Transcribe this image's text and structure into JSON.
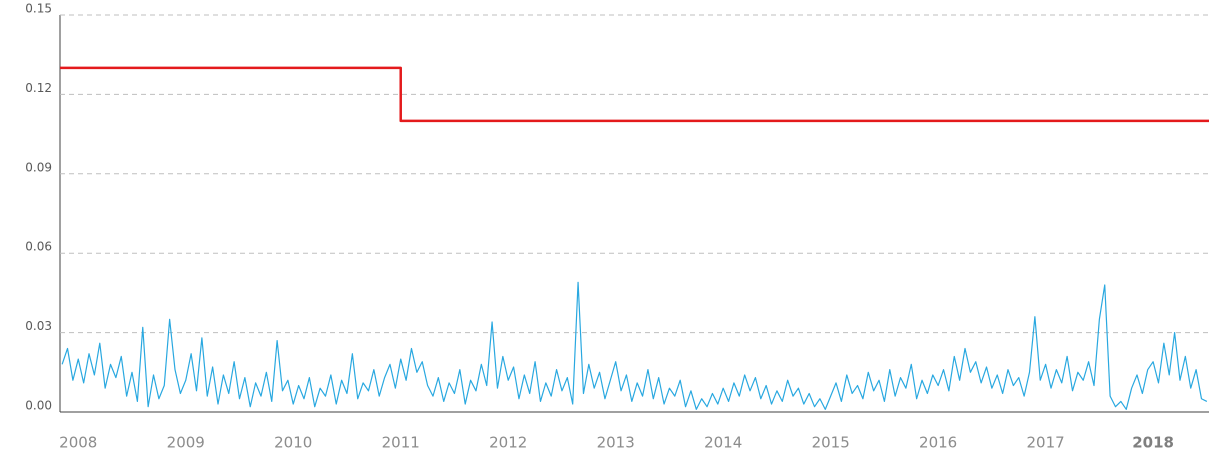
{
  "chart_data": {
    "type": "line",
    "xlim": [
      2007.83,
      2018.52
    ],
    "xticks": [
      2008,
      2009,
      2010,
      2011,
      2012,
      2013,
      2014,
      2015,
      2016,
      2017,
      2018
    ],
    "ylim": [
      0,
      0.15
    ],
    "yticks": [
      {
        "value": 0,
        "label": "0.00"
      },
      0.03,
      0.06,
      0.09,
      0.12,
      0.15
    ],
    "grid": true,
    "series": [
      {
        "color": "#e41a1c",
        "x": [
          2007.83,
          2011.0,
          2011.0,
          2018.52
        ],
        "values": [
          0.13,
          0.13,
          0.11,
          0.11
        ]
      },
      {
        "color": "#29a8e0",
        "x": [
          2007.85,
          2007.9,
          2007.95,
          2008.0,
          2008.05,
          2008.1,
          2008.15,
          2008.2,
          2008.25,
          2008.3,
          2008.35,
          2008.4,
          2008.45,
          2008.5,
          2008.55,
          2008.6,
          2008.65,
          2008.7,
          2008.75,
          2008.8,
          2008.85,
          2008.9,
          2008.95,
          2009.0,
          2009.05,
          2009.1,
          2009.15,
          2009.2,
          2009.25,
          2009.3,
          2009.35,
          2009.4,
          2009.45,
          2009.5,
          2009.55,
          2009.6,
          2009.65,
          2009.7,
          2009.75,
          2009.8,
          2009.85,
          2009.9,
          2009.95,
          2010.0,
          2010.05,
          2010.1,
          2010.15,
          2010.2,
          2010.25,
          2010.3,
          2010.35,
          2010.4,
          2010.45,
          2010.5,
          2010.55,
          2010.6,
          2010.65,
          2010.7,
          2010.75,
          2010.8,
          2010.85,
          2010.9,
          2010.95,
          2011.0,
          2011.05,
          2011.1,
          2011.15,
          2011.2,
          2011.25,
          2011.3,
          2011.35,
          2011.4,
          2011.45,
          2011.5,
          2011.55,
          2011.6,
          2011.65,
          2011.7,
          2011.75,
          2011.8,
          2011.85,
          2011.9,
          2011.95,
          2012.0,
          2012.05,
          2012.1,
          2012.15,
          2012.2,
          2012.25,
          2012.3,
          2012.35,
          2012.4,
          2012.45,
          2012.5,
          2012.55,
          2012.6,
          2012.65,
          2012.7,
          2012.75,
          2012.8,
          2012.85,
          2012.9,
          2012.95,
          2013.0,
          2013.05,
          2013.1,
          2013.15,
          2013.2,
          2013.25,
          2013.3,
          2013.35,
          2013.4,
          2013.45,
          2013.5,
          2013.55,
          2013.6,
          2013.65,
          2013.7,
          2013.75,
          2013.8,
          2013.85,
          2013.9,
          2013.95,
          2014.0,
          2014.05,
          2014.1,
          2014.15,
          2014.2,
          2014.25,
          2014.3,
          2014.35,
          2014.4,
          2014.45,
          2014.5,
          2014.55,
          2014.6,
          2014.65,
          2014.7,
          2014.75,
          2014.8,
          2014.85,
          2014.9,
          2014.95,
          2015.0,
          2015.05,
          2015.1,
          2015.15,
          2015.2,
          2015.25,
          2015.3,
          2015.35,
          2015.4,
          2015.45,
          2015.5,
          2015.55,
          2015.6,
          2015.65,
          2015.7,
          2015.75,
          2015.8,
          2015.85,
          2015.9,
          2015.95,
          2016.0,
          2016.05,
          2016.1,
          2016.15,
          2016.2,
          2016.25,
          2016.3,
          2016.35,
          2016.4,
          2016.45,
          2016.5,
          2016.55,
          2016.6,
          2016.65,
          2016.7,
          2016.75,
          2016.8,
          2016.85,
          2016.9,
          2016.95,
          2017.0,
          2017.05,
          2017.1,
          2017.15,
          2017.2,
          2017.25,
          2017.3,
          2017.35,
          2017.4,
          2017.45,
          2017.5,
          2017.55,
          2017.6,
          2017.65,
          2017.7,
          2017.75,
          2017.8,
          2017.85,
          2017.9,
          2017.95,
          2018.0,
          2018.05,
          2018.1,
          2018.15,
          2018.2,
          2018.25,
          2018.3,
          2018.35,
          2018.4,
          2018.45,
          2018.5
        ],
        "values": [
          0.018,
          0.024,
          0.012,
          0.02,
          0.011,
          0.022,
          0.014,
          0.026,
          0.009,
          0.018,
          0.013,
          0.021,
          0.006,
          0.015,
          0.004,
          0.032,
          0.002,
          0.014,
          0.005,
          0.01,
          0.035,
          0.016,
          0.007,
          0.012,
          0.022,
          0.008,
          0.028,
          0.006,
          0.017,
          0.003,
          0.014,
          0.007,
          0.019,
          0.005,
          0.013,
          0.002,
          0.011,
          0.006,
          0.015,
          0.004,
          0.027,
          0.008,
          0.012,
          0.003,
          0.01,
          0.005,
          0.013,
          0.002,
          0.009,
          0.006,
          0.014,
          0.003,
          0.012,
          0.007,
          0.022,
          0.005,
          0.011,
          0.008,
          0.016,
          0.006,
          0.013,
          0.018,
          0.009,
          0.02,
          0.012,
          0.024,
          0.015,
          0.019,
          0.01,
          0.006,
          0.013,
          0.004,
          0.011,
          0.007,
          0.016,
          0.003,
          0.012,
          0.008,
          0.018,
          0.01,
          0.034,
          0.009,
          0.021,
          0.012,
          0.017,
          0.005,
          0.014,
          0.007,
          0.019,
          0.004,
          0.011,
          0.006,
          0.016,
          0.008,
          0.013,
          0.003,
          0.049,
          0.007,
          0.018,
          0.009,
          0.015,
          0.005,
          0.012,
          0.019,
          0.008,
          0.014,
          0.004,
          0.011,
          0.006,
          0.016,
          0.005,
          0.013,
          0.003,
          0.009,
          0.006,
          0.012,
          0.002,
          0.008,
          0.001,
          0.005,
          0.002,
          0.007,
          0.003,
          0.009,
          0.004,
          0.011,
          0.006,
          0.014,
          0.008,
          0.013,
          0.005,
          0.01,
          0.003,
          0.008,
          0.004,
          0.012,
          0.006,
          0.009,
          0.003,
          0.007,
          0.002,
          0.005,
          0.001,
          0.006,
          0.011,
          0.004,
          0.014,
          0.007,
          0.01,
          0.005,
          0.015,
          0.008,
          0.012,
          0.004,
          0.016,
          0.006,
          0.013,
          0.009,
          0.018,
          0.005,
          0.012,
          0.007,
          0.014,
          0.01,
          0.016,
          0.008,
          0.021,
          0.012,
          0.024,
          0.015,
          0.019,
          0.011,
          0.017,
          0.009,
          0.014,
          0.007,
          0.016,
          0.01,
          0.013,
          0.006,
          0.015,
          0.036,
          0.012,
          0.018,
          0.009,
          0.016,
          0.011,
          0.021,
          0.008,
          0.015,
          0.012,
          0.019,
          0.01,
          0.035,
          0.048,
          0.006,
          0.002,
          0.004,
          0.001,
          0.009,
          0.014,
          0.007,
          0.016,
          0.019,
          0.011,
          0.026,
          0.014,
          0.03,
          0.012,
          0.021,
          0.009,
          0.016,
          0.005,
          0.004
        ]
      }
    ]
  }
}
